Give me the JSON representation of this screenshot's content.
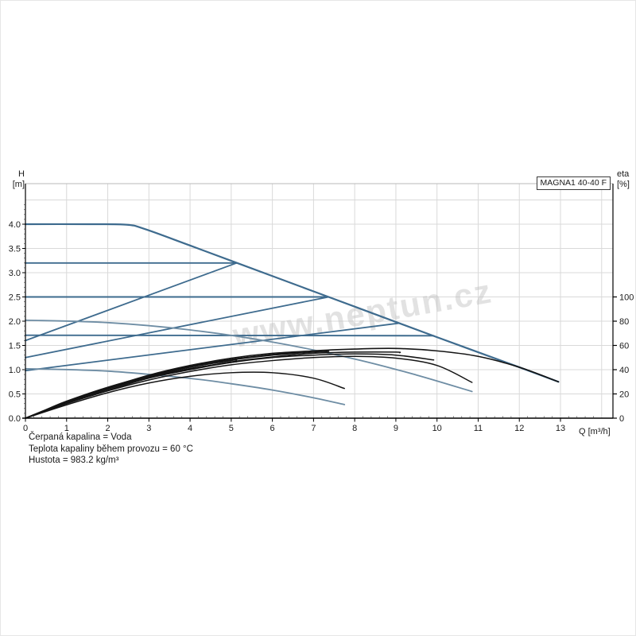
{
  "title_box": "MAGNA1 40-40 F",
  "watermark": "www.neptun.cz",
  "axes": {
    "left": {
      "title_line1": "H",
      "title_line2": "[m]",
      "ticks": [
        "4.0",
        "3.5",
        "3.0",
        "2.5",
        "2.0",
        "1.5",
        "1.0",
        "0.5",
        "0.0"
      ]
    },
    "right": {
      "title_line1": "eta",
      "title_line2": "[%]",
      "ticks": [
        "100",
        "80",
        "60",
        "40",
        "20",
        "0"
      ]
    },
    "bottom": {
      "ticks": [
        "0",
        "1",
        "2",
        "3",
        "4",
        "5",
        "6",
        "7",
        "8",
        "9",
        "10",
        "11",
        "12",
        "13"
      ],
      "unit_label": "Q [m³/h]"
    }
  },
  "footer": {
    "lines": [
      "Čerpaná kapalina = Voda",
      "Teplota kapaliny během provozu = 60 °C",
      "Hustota = 983.2 kg/m³"
    ]
  },
  "colors": {
    "curve_blue": "#3e6b8e",
    "curve_light_blue": "#6e8da4",
    "curve_black": "#141414",
    "grid": "#d9d9d9",
    "axis": "#000000",
    "top_border": "#b8b8b8",
    "watermark": "#bfbfbf"
  },
  "chart_data": {
    "type": "line",
    "title": "MAGNA1 40-40 F",
    "xlabel": "Q [m³/h]",
    "ylabel_left": "H [m]",
    "ylabel_right": "eta [%]",
    "x_ticks": [
      0,
      1,
      2,
      3,
      4,
      5,
      6,
      7,
      8,
      9,
      10,
      11,
      12,
      13
    ],
    "xlim": [
      0,
      14.3
    ],
    "ylim_left": [
      0,
      4.84
    ],
    "ylim_right": [
      0,
      193
    ],
    "grid": true,
    "series": [
      {
        "name": "max-curve",
        "axis": "H",
        "color": "#3e6b8e",
        "width": 2.2,
        "points": [
          [
            0,
            4.0
          ],
          [
            1.5,
            4.0
          ],
          [
            2.45,
            3.99
          ],
          [
            2.9,
            3.9
          ],
          [
            4,
            3.56
          ],
          [
            6,
            2.93
          ],
          [
            8,
            2.3
          ],
          [
            10,
            1.67
          ],
          [
            12,
            1.05
          ],
          [
            12.95,
            0.75
          ]
        ]
      },
      {
        "name": "constant-pressure-3.2m",
        "axis": "H",
        "color": "#3e6b8e",
        "width": 1.9,
        "points": [
          [
            0,
            3.2
          ],
          [
            5.13,
            3.2
          ]
        ]
      },
      {
        "name": "constant-pressure-2.5m",
        "axis": "H",
        "color": "#3e6b8e",
        "width": 1.9,
        "points": [
          [
            0,
            2.5
          ],
          [
            7.37,
            2.5
          ]
        ]
      },
      {
        "name": "constant-pressure-1.7m",
        "axis": "H",
        "color": "#3e6b8e",
        "width": 1.9,
        "points": [
          [
            0,
            1.71
          ],
          [
            9.92,
            1.7
          ]
        ]
      },
      {
        "name": "proportional-pressure-3.2m",
        "axis": "H",
        "color": "#3e6b8e",
        "width": 1.8,
        "points": [
          [
            0,
            1.6
          ],
          [
            5.13,
            3.2
          ]
        ]
      },
      {
        "name": "proportional-pressure-2.5m",
        "axis": "H",
        "color": "#3e6b8e",
        "width": 1.8,
        "points": [
          [
            0,
            1.25
          ],
          [
            7.37,
            2.5
          ]
        ]
      },
      {
        "name": "proportional-pressure-2.0m",
        "axis": "H",
        "color": "#3e6b8e",
        "width": 1.8,
        "points": [
          [
            0,
            0.98
          ],
          [
            9.09,
            1.96
          ]
        ]
      },
      {
        "name": "speed-II-curve",
        "axis": "H",
        "color": "#6e8da4",
        "width": 1.8,
        "points": [
          [
            0,
            2.02
          ],
          [
            2,
            1.97
          ],
          [
            4,
            1.82
          ],
          [
            6,
            1.57
          ],
          [
            8,
            1.22
          ],
          [
            9.5,
            0.89
          ],
          [
            10.85,
            0.55
          ]
        ]
      },
      {
        "name": "min-curve",
        "axis": "H",
        "color": "#6e8da4",
        "width": 1.8,
        "points": [
          [
            0,
            1.02
          ],
          [
            2,
            0.97
          ],
          [
            4,
            0.82
          ],
          [
            5,
            0.71
          ],
          [
            6,
            0.58
          ],
          [
            7,
            0.42
          ],
          [
            7.75,
            0.28
          ]
        ]
      },
      {
        "name": "eta-max-curve",
        "axis": "eta",
        "color": "#141414",
        "width": 1.6,
        "points": [
          [
            0,
            0
          ],
          [
            0.5,
            7
          ],
          [
            1,
            14
          ],
          [
            2,
            25.5
          ],
          [
            3,
            35
          ],
          [
            4,
            43
          ],
          [
            5,
            48.5
          ],
          [
            6,
            52.5
          ],
          [
            7,
            55.5
          ],
          [
            8,
            57
          ],
          [
            9,
            57.5
          ],
          [
            10,
            55.5
          ],
          [
            11,
            51
          ],
          [
            12,
            42
          ],
          [
            12.95,
            30
          ]
        ]
      },
      {
        "name": "eta-speed-II",
        "axis": "eta",
        "color": "#141414",
        "width": 1.5,
        "points": [
          [
            0,
            0
          ],
          [
            1,
            12
          ],
          [
            2,
            22.5
          ],
          [
            3,
            31.5
          ],
          [
            4,
            38.5
          ],
          [
            5,
            44
          ],
          [
            6,
            47.5
          ],
          [
            7,
            50
          ],
          [
            8,
            51
          ],
          [
            9,
            49.5
          ],
          [
            10,
            43.5
          ],
          [
            10.85,
            29.5
          ]
        ]
      },
      {
        "name": "eta-min",
        "axis": "eta",
        "color": "#141414",
        "width": 1.5,
        "points": [
          [
            0,
            0
          ],
          [
            1,
            11
          ],
          [
            2,
            21
          ],
          [
            3,
            29
          ],
          [
            4,
            34.5
          ],
          [
            5,
            37.5
          ],
          [
            6,
            37.5
          ],
          [
            7,
            33
          ],
          [
            7.75,
            24.5
          ]
        ]
      },
      {
        "name": "eta-cp-3.2m",
        "axis": "eta",
        "color": "#141414",
        "width": 1.5,
        "points": [
          [
            0,
            0
          ],
          [
            1,
            13
          ],
          [
            2,
            24.5
          ],
          [
            3,
            34.5
          ],
          [
            4,
            42
          ],
          [
            5,
            47.5
          ],
          [
            5.13,
            48
          ]
        ]
      },
      {
        "name": "eta-cp-2.5m",
        "axis": "eta",
        "color": "#141414",
        "width": 1.5,
        "points": [
          [
            0,
            0
          ],
          [
            1,
            13.5
          ],
          [
            2,
            25
          ],
          [
            3,
            35.5
          ],
          [
            4,
            43.5
          ],
          [
            5,
            49.5
          ],
          [
            6,
            53.5
          ],
          [
            7,
            55.5
          ],
          [
            7.37,
            56
          ]
        ]
      },
      {
        "name": "eta-cp-1.7m",
        "axis": "eta",
        "color": "#141414",
        "width": 1.5,
        "points": [
          [
            0,
            0
          ],
          [
            1,
            12.5
          ],
          [
            2,
            23
          ],
          [
            3,
            33
          ],
          [
            4,
            40
          ],
          [
            5,
            46
          ],
          [
            6,
            50
          ],
          [
            7,
            52
          ],
          [
            8,
            53
          ],
          [
            9,
            52
          ],
          [
            9.92,
            48
          ]
        ]
      },
      {
        "name": "eta-pp-3.2m",
        "axis": "eta",
        "color": "#141414",
        "width": 1.5,
        "points": [
          [
            0,
            0
          ],
          [
            1,
            12.5
          ],
          [
            2,
            24
          ],
          [
            3,
            34
          ],
          [
            4,
            41
          ],
          [
            5,
            46
          ],
          [
            5.13,
            46.5
          ]
        ]
      },
      {
        "name": "eta-pp-2.5m",
        "axis": "eta",
        "color": "#141414",
        "width": 1.5,
        "points": [
          [
            0,
            0
          ],
          [
            1,
            13
          ],
          [
            2,
            25
          ],
          [
            3,
            35
          ],
          [
            4,
            42.5
          ],
          [
            5,
            48
          ],
          [
            6,
            52
          ],
          [
            7,
            54.5
          ],
          [
            7.37,
            55
          ]
        ]
      },
      {
        "name": "eta-pp-2.0m",
        "axis": "eta",
        "color": "#141414",
        "width": 1.5,
        "points": [
          [
            0,
            0
          ],
          [
            1,
            13
          ],
          [
            2,
            24
          ],
          [
            3,
            33.5
          ],
          [
            4,
            40.5
          ],
          [
            5,
            46.5
          ],
          [
            6,
            50.5
          ],
          [
            7,
            53.5
          ],
          [
            8,
            54.5
          ],
          [
            9,
            54.5
          ],
          [
            9.09,
            54
          ]
        ]
      }
    ]
  }
}
